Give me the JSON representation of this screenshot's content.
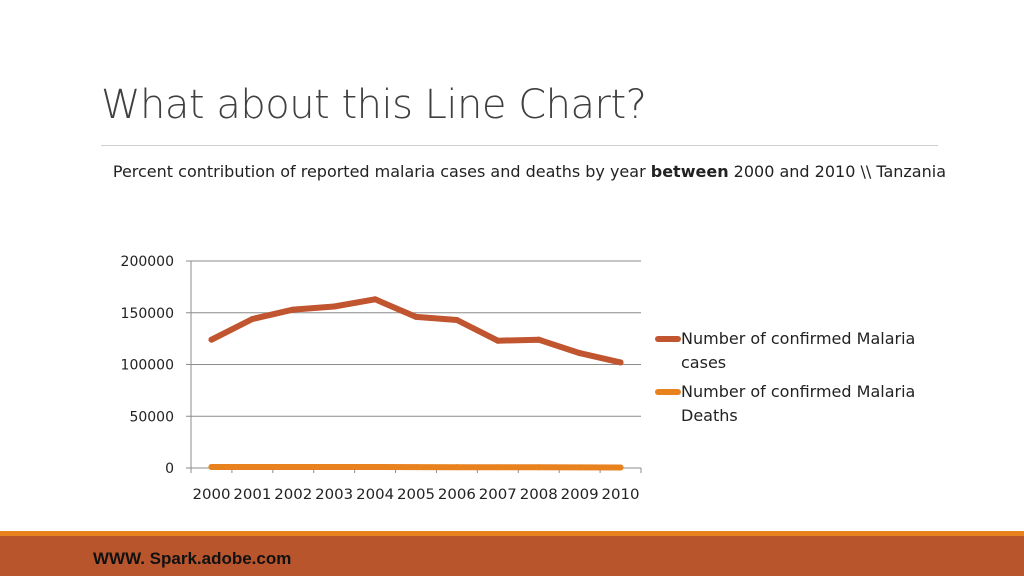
{
  "slide": {
    "title": "What about this Line Chart?",
    "footer": "WWW. Spark.adobe.com"
  },
  "colors": {
    "cases": "#c05530",
    "deaths": "#e8821f",
    "accent_stripe": "#e8821f",
    "footer_bar": "#b9552c"
  },
  "chart_data": {
    "type": "line",
    "title_part1": "Percent contribution of reported malaria cases and deaths by year ",
    "title_bold": "between",
    "title_part2": " 2000 and 2010 \\\\ Tanzania",
    "xlabel": "",
    "ylabel": "",
    "categories": [
      "2000",
      "2001",
      "2002",
      "2003",
      "2004",
      "2005",
      "2006",
      "2007",
      "2008",
      "2009",
      "2010"
    ],
    "ylim": [
      0,
      200000
    ],
    "yticks": [
      "0",
      "50000",
      "100000",
      "150000",
      "200000"
    ],
    "grid": true,
    "legend_position": "right",
    "series": [
      {
        "name": "Number of confirmed Malaria cases",
        "color": "#c05530",
        "values": [
          124000,
          144000,
          153000,
          156000,
          163000,
          146000,
          143000,
          123000,
          124000,
          111000,
          102000
        ]
      },
      {
        "name": "Number of confirmed Malaria Deaths",
        "color": "#e8821f",
        "values": [
          1000,
          1000,
          1000,
          1000,
          1000,
          900,
          800,
          700,
          700,
          600,
          500
        ]
      }
    ]
  }
}
